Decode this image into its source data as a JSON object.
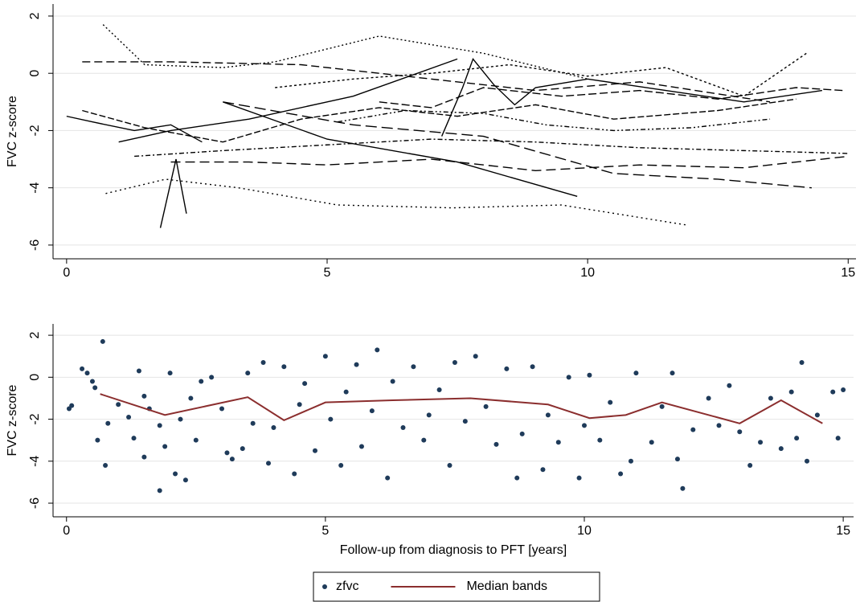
{
  "chart_data": [
    {
      "type": "line",
      "ylabel": "FVC z-score",
      "xlim": [
        -0.26,
        15.15
      ],
      "ylim": [
        -6.48,
        2.42
      ],
      "xticks": [
        0,
        5,
        10,
        15
      ],
      "yticks": [
        -6,
        -4,
        -2,
        0,
        2
      ],
      "grid": true,
      "series": [
        {
          "color": "#000000",
          "dash": "none",
          "x": [
            0,
            0.5,
            1.3,
            2.0,
            2.6
          ],
          "values": [
            -1.5,
            -1.7,
            -2.0,
            -1.8,
            -2.4
          ]
        },
        {
          "color": "#000000",
          "dash": "none",
          "x": [
            1.0,
            2.0,
            3.5,
            5.5,
            7.5
          ],
          "values": [
            -2.4,
            -2.0,
            -1.6,
            -0.8,
            0.5
          ]
        },
        {
          "color": "#000000",
          "dash": "2,3",
          "x": [
            0.7,
            1.5,
            3.0,
            4.0,
            6.0,
            8.0,
            10.0
          ],
          "values": [
            1.7,
            0.3,
            0.2,
            0.4,
            1.3,
            0.7,
            -0.2
          ]
        },
        {
          "color": "#000000",
          "dash": "10,5",
          "x": [
            0.3,
            2.0,
            4.5,
            6.5,
            9.0,
            11.0,
            13.5
          ],
          "values": [
            0.4,
            0.4,
            0.3,
            -0.1,
            -0.6,
            -0.3,
            -1.0
          ]
        },
        {
          "color": "#000000",
          "dash": "2,4",
          "x": [
            0.75,
            1.9,
            3.3,
            5.2,
            7.4,
            9.5,
            11.9
          ],
          "values": [
            -4.2,
            -3.7,
            -4.0,
            -4.6,
            -4.7,
            -4.6,
            -5.3
          ]
        },
        {
          "color": "#000000",
          "dash": "none",
          "x": [
            1.8,
            1.9,
            2.1,
            2.3
          ],
          "values": [
            -5.4,
            -4.6,
            -3.0,
            -4.9
          ]
        },
        {
          "color": "#000000",
          "dash": "12,6",
          "x": [
            2.0,
            3.5,
            5.0,
            7.0,
            9.0,
            11.0,
            13.0,
            15.0
          ],
          "values": [
            -3.1,
            -3.1,
            -3.2,
            -3.0,
            -3.4,
            -3.2,
            -3.3,
            -2.9
          ]
        },
        {
          "color": "#000000",
          "dash": "6,3,2,3",
          "x": [
            1.3,
            3.0,
            5.0,
            7.0,
            9.0,
            11.0,
            13.0,
            15.0
          ],
          "values": [
            -2.9,
            -2.7,
            -2.5,
            -2.3,
            -2.4,
            -2.6,
            -2.7,
            -2.8
          ]
        },
        {
          "color": "#000000",
          "dash": "14,6",
          "x": [
            3.0,
            5.5,
            8.0,
            10.5,
            12.5,
            14.3
          ],
          "values": [
            -1.0,
            -1.8,
            -2.2,
            -3.5,
            -3.7,
            -4.0
          ]
        },
        {
          "color": "#000000",
          "dash": "none",
          "x": [
            3.0,
            5.0,
            7.5,
            9.8
          ],
          "values": [
            -1.0,
            -2.3,
            -3.1,
            -4.3
          ]
        },
        {
          "color": "#000000",
          "dash": "10,4",
          "x": [
            6.0,
            7.0,
            8.0,
            9.5,
            11.0,
            12.5,
            14.0,
            14.9
          ],
          "values": [
            -1.0,
            -1.2,
            -0.5,
            -0.8,
            -0.6,
            -0.9,
            -0.5,
            -0.6
          ]
        },
        {
          "color": "#000000",
          "dash": "3,3",
          "x": [
            4.0,
            5.5,
            7.0,
            8.5,
            10.0,
            11.5,
            13.0,
            14.2
          ],
          "values": [
            -0.5,
            -0.2,
            0.0,
            0.3,
            -0.1,
            0.2,
            -0.8,
            0.7
          ]
        },
        {
          "color": "#000000",
          "dash": "6,3,2,3,2,3",
          "x": [
            5.2,
            6.5,
            8.0,
            9.2,
            10.5,
            12.0,
            13.5
          ],
          "values": [
            -1.7,
            -1.3,
            -1.4,
            -1.8,
            -2.0,
            -1.9,
            -1.6
          ]
        },
        {
          "color": "#000000",
          "dash": "8,3",
          "x": [
            0.3,
            1.5,
            3.0,
            4.5,
            6.0,
            7.5,
            9.0,
            10.5,
            12.5,
            14.0
          ],
          "values": [
            -1.3,
            -1.9,
            -2.4,
            -1.6,
            -1.2,
            -1.5,
            -1.1,
            -1.6,
            -1.3,
            -0.9
          ]
        },
        {
          "color": "#000000",
          "dash": "none",
          "x": [
            7.2,
            7.6,
            7.8,
            8.2,
            8.6,
            9.0,
            10.0,
            11.5,
            13.0,
            14.5
          ],
          "values": [
            -2.2,
            -0.5,
            0.5,
            -0.4,
            -1.1,
            -0.5,
            -0.2,
            -0.6,
            -1.0,
            -0.6
          ]
        }
      ]
    },
    {
      "type": "scatter",
      "ylabel": "FVC z-score",
      "xlabel": "Follow-up from diagnosis to PFT [years]",
      "xlim": [
        -0.26,
        15.2
      ],
      "ylim": [
        -6.65,
        2.54
      ],
      "xticks": [
        0,
        5,
        10,
        15
      ],
      "yticks": [
        -6,
        -4,
        -2,
        0,
        2
      ],
      "grid": true,
      "legend": "bottom",
      "series": [
        {
          "name": "zfvc",
          "type": "scatter",
          "color": "#1f3b5a",
          "x": [
            0.05,
            0.1,
            0.3,
            0.4,
            0.5,
            0.55,
            0.6,
            0.7,
            0.75,
            0.8,
            1.0,
            1.2,
            1.3,
            1.4,
            1.5,
            1.5,
            1.6,
            1.8,
            1.8,
            1.9,
            2.0,
            2.1,
            2.2,
            2.3,
            2.4,
            2.5,
            2.6,
            2.8,
            3.0,
            3.1,
            3.2,
            3.4,
            3.5,
            3.6,
            3.8,
            3.9,
            4.0,
            4.2,
            4.4,
            4.5,
            4.6,
            4.8,
            5.0,
            5.1,
            5.3,
            5.4,
            5.6,
            5.7,
            5.9,
            6.0,
            6.2,
            6.3,
            6.5,
            6.7,
            6.9,
            7.0,
            7.2,
            7.4,
            7.5,
            7.7,
            7.9,
            8.1,
            8.3,
            8.5,
            8.7,
            8.8,
            9.0,
            9.2,
            9.3,
            9.5,
            9.7,
            9.9,
            10.0,
            10.1,
            10.3,
            10.5,
            10.7,
            10.9,
            11.0,
            11.3,
            11.5,
            11.7,
            11.8,
            11.9,
            12.1,
            12.4,
            12.6,
            12.8,
            13.0,
            13.2,
            13.4,
            13.6,
            13.8,
            14.0,
            14.1,
            14.2,
            14.3,
            14.5,
            14.8,
            14.9,
            15.0
          ],
          "values": [
            -1.5,
            -1.35,
            0.4,
            0.2,
            -0.2,
            -0.5,
            -3.0,
            1.7,
            -4.2,
            -2.2,
            -1.3,
            -1.9,
            -2.9,
            0.3,
            -0.9,
            -3.8,
            -1.5,
            -2.3,
            -5.4,
            -3.3,
            0.2,
            -4.6,
            -2.0,
            -4.9,
            -1.0,
            -3.0,
            -0.2,
            0.0,
            -1.5,
            -3.6,
            -3.9,
            -3.4,
            0.2,
            -2.2,
            0.7,
            -4.1,
            -2.4,
            0.5,
            -4.6,
            -1.3,
            -0.3,
            -3.5,
            1.0,
            -2.0,
            -4.2,
            -0.7,
            0.6,
            -3.3,
            -1.6,
            1.3,
            -4.8,
            -0.2,
            -2.4,
            0.5,
            -3.0,
            -1.8,
            -0.6,
            -4.2,
            0.7,
            -2.1,
            1.0,
            -1.4,
            -3.2,
            0.4,
            -4.8,
            -2.7,
            0.5,
            -4.4,
            -1.8,
            -3.1,
            0.0,
            -4.8,
            -2.3,
            0.1,
            -3.0,
            -1.2,
            -4.6,
            -4.0,
            0.2,
            -3.1,
            -1.4,
            0.2,
            -3.9,
            -5.3,
            -2.5,
            -1.0,
            -2.3,
            -0.4,
            -2.6,
            -4.2,
            -3.1,
            -1.0,
            -3.4,
            -0.7,
            -2.9,
            0.7,
            -4.0,
            -1.8,
            -0.7,
            -2.9,
            -0.6
          ]
        },
        {
          "name": "Median bands",
          "type": "line",
          "color": "#8b2e2e",
          "x": [
            0.65,
            1.9,
            3.5,
            4.2,
            5.0,
            6.3,
            7.8,
            9.3,
            10.1,
            10.8,
            11.5,
            13.0,
            13.8,
            14.6
          ],
          "values": [
            -0.8,
            -1.8,
            -0.95,
            -2.05,
            -1.2,
            -1.1,
            -1.0,
            -1.3,
            -1.95,
            -1.8,
            -1.2,
            -2.2,
            -1.1,
            -2.2
          ]
        }
      ]
    }
  ]
}
